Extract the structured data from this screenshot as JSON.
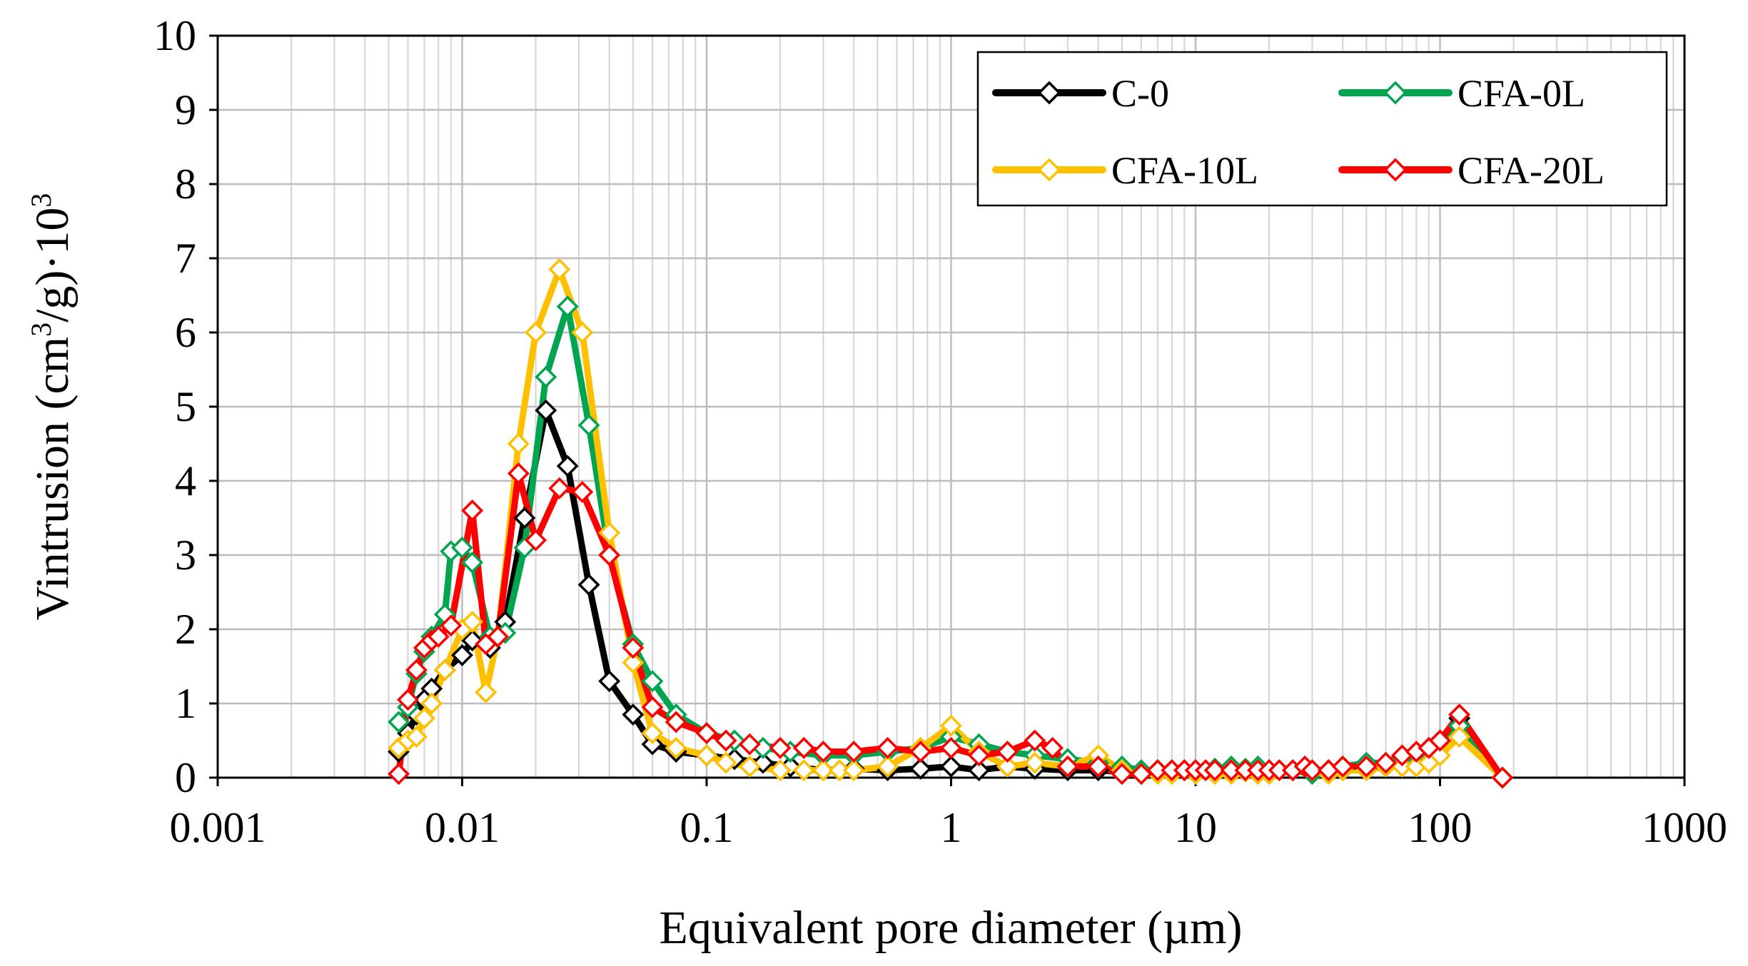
{
  "chart_data": {
    "type": "line",
    "x_scale": "log",
    "xlabel": "Equivalent pore diameter (µm)",
    "ylabel": {
      "main": "Vintrusion (cm",
      "sup1": "3",
      "mid": "/g)·10",
      "sup2": "3"
    },
    "xlim": [
      0.001,
      1000
    ],
    "ylim": [
      0,
      10
    ],
    "x_ticks": [
      0.001,
      0.01,
      0.1,
      1,
      10,
      100,
      1000
    ],
    "x_tick_labels": [
      "0.001",
      "0.01",
      "0.1",
      "1",
      "10",
      "100",
      "1000"
    ],
    "y_ticks": [
      0,
      1,
      2,
      3,
      4,
      5,
      6,
      7,
      8,
      9,
      10
    ],
    "y_tick_labels": [
      "0",
      "1",
      "2",
      "3",
      "4",
      "5",
      "6",
      "7",
      "8",
      "9",
      "10"
    ],
    "grid": true,
    "legend_position": "top-right",
    "series": [
      {
        "name": "C-0",
        "color": "#000000",
        "x": [
          0.0055,
          0.006,
          0.0065,
          0.007,
          0.0075,
          0.0085,
          0.01,
          0.011,
          0.013,
          0.015,
          0.018,
          0.022,
          0.027,
          0.033,
          0.04,
          0.05,
          0.06,
          0.075,
          0.1,
          0.13,
          0.17,
          0.22,
          0.3,
          0.4,
          0.55,
          0.75,
          1.0,
          1.3,
          1.7,
          2.2,
          3.0,
          4.0,
          5.0,
          6.0,
          7.0,
          8.0,
          9.0,
          10,
          12,
          14,
          16,
          18,
          20,
          25,
          30,
          35,
          40,
          50,
          60,
          70,
          80,
          90,
          100,
          120,
          180
        ],
        "y": [
          0.35,
          0.6,
          0.85,
          1.05,
          1.2,
          1.45,
          1.65,
          1.85,
          1.75,
          2.1,
          3.5,
          4.95,
          4.2,
          2.6,
          1.3,
          0.85,
          0.45,
          0.35,
          0.3,
          0.25,
          0.2,
          0.15,
          0.1,
          0.12,
          0.1,
          0.12,
          0.15,
          0.1,
          0.15,
          0.12,
          0.1,
          0.1,
          0.08,
          0.08,
          0.1,
          0.1,
          0.1,
          0.1,
          0.12,
          0.1,
          0.1,
          0.12,
          0.1,
          0.1,
          0.08,
          0.1,
          0.1,
          0.12,
          0.15,
          0.2,
          0.3,
          0.4,
          0.5,
          0.8,
          0.0
        ]
      },
      {
        "name": "CFA-0L",
        "color": "#00a550",
        "x": [
          0.0055,
          0.006,
          0.0065,
          0.007,
          0.0075,
          0.0085,
          0.009,
          0.01,
          0.011,
          0.013,
          0.015,
          0.018,
          0.022,
          0.027,
          0.033,
          0.04,
          0.05,
          0.06,
          0.075,
          0.1,
          0.13,
          0.17,
          0.22,
          0.3,
          0.4,
          0.55,
          0.75,
          1.0,
          1.3,
          1.7,
          2.2,
          3.0,
          4.0,
          5.0,
          6.0,
          7.0,
          8.0,
          9.0,
          10,
          12,
          14,
          16,
          18,
          20,
          25,
          30,
          35,
          40,
          50,
          60,
          70,
          80,
          90,
          100,
          120,
          180
        ],
        "y": [
          0.75,
          0.95,
          1.4,
          1.7,
          1.9,
          2.2,
          3.05,
          3.1,
          2.9,
          1.9,
          1.95,
          3.1,
          5.4,
          6.35,
          4.75,
          3.0,
          1.8,
          1.3,
          0.85,
          0.6,
          0.5,
          0.4,
          0.35,
          0.3,
          0.3,
          0.35,
          0.4,
          0.55,
          0.45,
          0.35,
          0.3,
          0.25,
          0.2,
          0.15,
          0.1,
          0.1,
          0.1,
          0.1,
          0.1,
          0.12,
          0.15,
          0.12,
          0.15,
          0.1,
          0.1,
          0.05,
          0.1,
          0.15,
          0.2,
          0.2,
          0.25,
          0.3,
          0.4,
          0.5,
          0.7,
          0.0
        ]
      },
      {
        "name": "CFA-10L",
        "color": "#ffc000",
        "x": [
          0.0055,
          0.006,
          0.0065,
          0.007,
          0.0075,
          0.0085,
          0.01,
          0.011,
          0.0125,
          0.014,
          0.017,
          0.02,
          0.025,
          0.031,
          0.04,
          0.05,
          0.06,
          0.075,
          0.1,
          0.12,
          0.15,
          0.2,
          0.25,
          0.3,
          0.35,
          0.4,
          0.55,
          0.75,
          1.0,
          1.3,
          1.7,
          2.2,
          3.0,
          4.0,
          5.0,
          6.0,
          7.0,
          8.0,
          9.0,
          10,
          12,
          14,
          16,
          18,
          20,
          25,
          30,
          35,
          40,
          50,
          60,
          70,
          80,
          90,
          100,
          120,
          180
        ],
        "y": [
          0.4,
          0.5,
          0.55,
          0.8,
          1.0,
          1.45,
          2.0,
          2.1,
          1.15,
          1.9,
          4.5,
          6.0,
          6.85,
          6.0,
          3.3,
          1.55,
          0.6,
          0.4,
          0.3,
          0.2,
          0.15,
          0.1,
          0.1,
          0.1,
          0.1,
          0.1,
          0.15,
          0.4,
          0.7,
          0.35,
          0.15,
          0.2,
          0.15,
          0.3,
          0.1,
          0.05,
          0.05,
          0.05,
          0.1,
          0.05,
          0.05,
          0.05,
          0.08,
          0.05,
          0.05,
          0.1,
          0.1,
          0.05,
          0.1,
          0.1,
          0.15,
          0.15,
          0.15,
          0.2,
          0.3,
          0.55,
          0.0
        ]
      },
      {
        "name": "CFA-20L",
        "color": "#ff0000",
        "x": [
          0.0055,
          0.006,
          0.0065,
          0.007,
          0.0075,
          0.008,
          0.009,
          0.011,
          0.0125,
          0.014,
          0.017,
          0.02,
          0.025,
          0.031,
          0.04,
          0.05,
          0.06,
          0.075,
          0.1,
          0.12,
          0.15,
          0.2,
          0.25,
          0.3,
          0.4,
          0.55,
          0.75,
          1.0,
          1.3,
          1.7,
          2.2,
          2.6,
          3.0,
          4.0,
          5.0,
          6.0,
          7.0,
          8.0,
          9.0,
          10,
          11,
          12,
          14,
          16,
          18,
          20,
          22,
          25,
          28,
          30,
          35,
          40,
          50,
          60,
          70,
          80,
          90,
          100,
          120,
          180
        ],
        "y": [
          0.05,
          1.05,
          1.45,
          1.75,
          1.85,
          1.9,
          2.05,
          3.6,
          1.8,
          1.9,
          4.1,
          3.2,
          3.9,
          3.85,
          3.0,
          1.75,
          0.95,
          0.75,
          0.6,
          0.5,
          0.45,
          0.4,
          0.4,
          0.35,
          0.35,
          0.4,
          0.35,
          0.4,
          0.3,
          0.35,
          0.5,
          0.4,
          0.15,
          0.15,
          0.05,
          0.05,
          0.1,
          0.1,
          0.1,
          0.1,
          0.1,
          0.1,
          0.1,
          0.1,
          0.1,
          0.1,
          0.1,
          0.1,
          0.15,
          0.1,
          0.1,
          0.15,
          0.15,
          0.2,
          0.3,
          0.35,
          0.4,
          0.5,
          0.85,
          0.0
        ]
      }
    ]
  }
}
